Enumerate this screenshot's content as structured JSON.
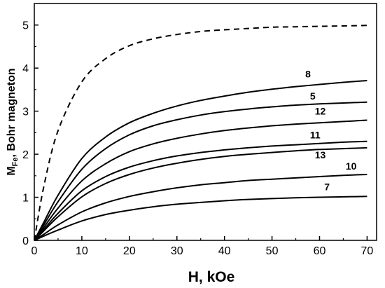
{
  "chart_data": {
    "type": "line",
    "xlabel": "H, kOe",
    "ylabel_main": "M",
    "ylabel_sub": "Fe",
    "ylabel_rest": ", Bohr magneton",
    "xlim": [
      0,
      72
    ],
    "ylim": [
      0,
      5.5
    ],
    "x_ticks": [
      0,
      10,
      20,
      30,
      40,
      50,
      60,
      70
    ],
    "y_ticks": [
      0,
      1,
      2,
      3,
      4,
      5
    ],
    "grid": false,
    "x": [
      0,
      2,
      5,
      10,
      15,
      20,
      25,
      30,
      35,
      40,
      45,
      50,
      55,
      60,
      65,
      70
    ],
    "series": [
      {
        "name": "",
        "style": "dashed",
        "values": [
          0,
          1.25,
          2.55,
          3.68,
          4.22,
          4.52,
          4.68,
          4.78,
          4.85,
          4.89,
          4.92,
          4.95,
          4.96,
          4.97,
          4.98,
          4.99
        ]
      },
      {
        "name": "8",
        "style": "solid",
        "values": [
          0,
          0.42,
          1.05,
          1.9,
          2.4,
          2.73,
          2.95,
          3.12,
          3.25,
          3.35,
          3.44,
          3.51,
          3.57,
          3.62,
          3.67,
          3.71
        ]
      },
      {
        "name": "5",
        "style": "solid",
        "values": [
          0,
          0.36,
          0.9,
          1.65,
          2.13,
          2.45,
          2.66,
          2.8,
          2.91,
          2.99,
          3.05,
          3.1,
          3.14,
          3.17,
          3.19,
          3.21
        ]
      },
      {
        "name": "12",
        "style": "solid",
        "values": [
          0,
          0.3,
          0.75,
          1.38,
          1.78,
          2.06,
          2.24,
          2.37,
          2.47,
          2.55,
          2.61,
          2.66,
          2.7,
          2.73,
          2.76,
          2.79
        ]
      },
      {
        "name": "11",
        "style": "solid",
        "values": [
          0,
          0.25,
          0.63,
          1.15,
          1.48,
          1.7,
          1.85,
          1.96,
          2.04,
          2.1,
          2.15,
          2.19,
          2.22,
          2.25,
          2.28,
          2.3
        ]
      },
      {
        "name": "13",
        "style": "solid",
        "values": [
          0,
          0.22,
          0.55,
          1.01,
          1.32,
          1.53,
          1.68,
          1.79,
          1.88,
          1.95,
          2.0,
          2.04,
          2.08,
          2.11,
          2.13,
          2.15
        ]
      },
      {
        "name": "10",
        "style": "solid",
        "values": [
          0,
          0.14,
          0.36,
          0.66,
          0.87,
          1.02,
          1.13,
          1.22,
          1.29,
          1.34,
          1.39,
          1.42,
          1.45,
          1.48,
          1.51,
          1.53
        ]
      },
      {
        "name": "7",
        "style": "solid",
        "values": [
          0,
          0.1,
          0.24,
          0.45,
          0.6,
          0.7,
          0.78,
          0.84,
          0.88,
          0.92,
          0.95,
          0.97,
          0.99,
          1.0,
          1.01,
          1.02
        ]
      }
    ],
    "curve_labels": [
      {
        "text": "8",
        "x": 57,
        "y": 3.78
      },
      {
        "text": "5",
        "x": 58,
        "y": 3.27
      },
      {
        "text": "12",
        "x": 59,
        "y": 2.92
      },
      {
        "text": "11",
        "x": 58,
        "y": 2.37
      },
      {
        "text": "13",
        "x": 59,
        "y": 1.9
      },
      {
        "text": "10",
        "x": 65.5,
        "y": 1.64
      },
      {
        "text": "7",
        "x": 61,
        "y": 1.16
      }
    ]
  }
}
